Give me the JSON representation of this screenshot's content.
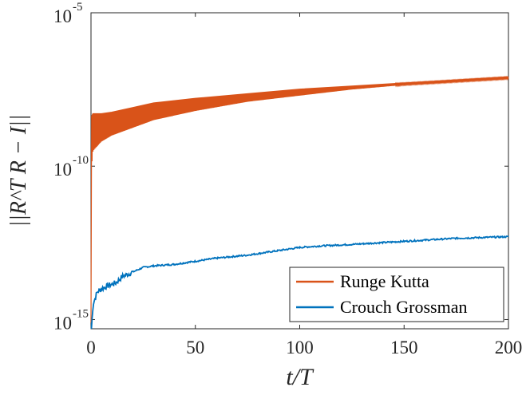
{
  "chart_data": {
    "type": "line",
    "title": "",
    "xlabel": "t/T",
    "ylabel": "||R^T R − I||",
    "xlim": [
      0,
      200
    ],
    "ylim_log10": [
      -15.3,
      -5
    ],
    "y_scale": "log",
    "x_ticks": [
      0,
      50,
      100,
      150,
      200
    ],
    "x_tick_labels": [
      "0",
      "50",
      "100",
      "150",
      "200"
    ],
    "y_ticks_log10": [
      -15,
      -10,
      -5
    ],
    "y_tick_labels": [
      {
        "base": "10",
        "exp": "-15"
      },
      {
        "base": "10",
        "exp": "-10"
      },
      {
        "base": "10",
        "exp": "-5"
      }
    ],
    "legend_position": "bottom-right",
    "series": [
      {
        "name": "Runge Kutta",
        "color": "#D95319",
        "band": true,
        "x": [
          0.3,
          1,
          5,
          10,
          20,
          30,
          50,
          75,
          100,
          125,
          150,
          175,
          200
        ],
        "upper": [
          -8.4,
          -8.3,
          -8.3,
          -8.25,
          -8.1,
          -7.95,
          -7.8,
          -7.65,
          -7.5,
          -7.4,
          -7.3,
          -7.2,
          -7.1
        ],
        "lower": [
          -10.0,
          -9.5,
          -9.2,
          -9.0,
          -8.75,
          -8.5,
          -8.2,
          -7.9,
          -7.7,
          -7.5,
          -7.35,
          -7.25,
          -7.15
        ]
      },
      {
        "name": "Crouch Grossman",
        "color": "#0072BD",
        "band": false,
        "x": [
          0.2,
          1,
          3,
          5,
          8,
          12,
          15,
          20,
          25,
          30,
          40,
          50,
          60,
          75,
          90,
          100,
          110,
          125,
          150,
          175,
          200
        ],
        "y": [
          -15.3,
          -14.5,
          -14.1,
          -14.0,
          -13.9,
          -13.8,
          -13.6,
          -13.45,
          -13.3,
          -13.25,
          -13.2,
          -13.1,
          -13.0,
          -12.9,
          -12.75,
          -12.65,
          -12.6,
          -12.55,
          -12.45,
          -12.35,
          -12.3
        ]
      }
    ]
  }
}
